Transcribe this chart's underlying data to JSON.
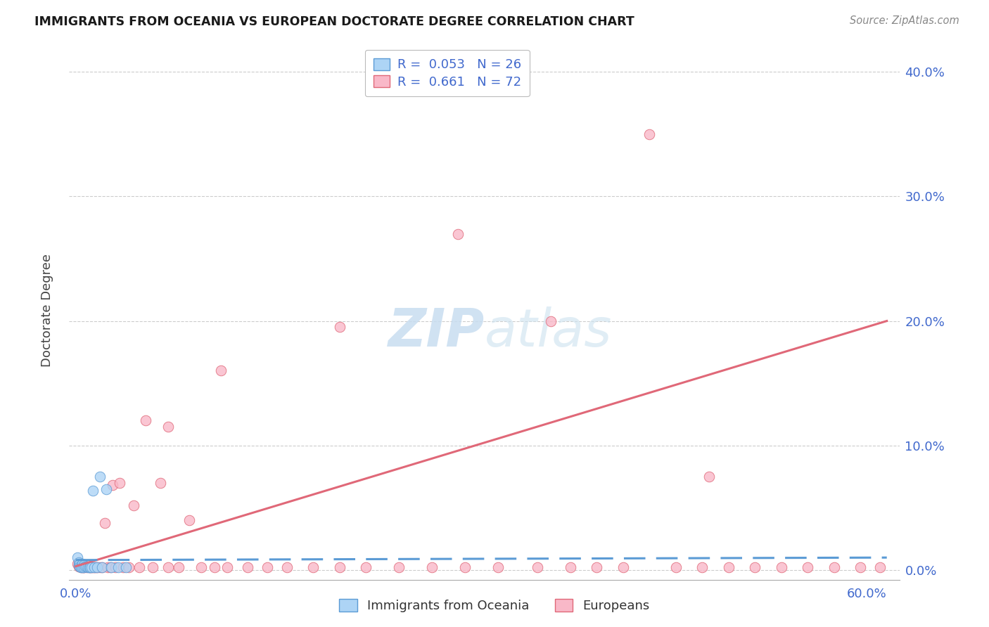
{
  "title": "IMMIGRANTS FROM OCEANIA VS EUROPEAN DOCTORATE DEGREE CORRELATION CHART",
  "source": "Source: ZipAtlas.com",
  "ylabel": "Doctorate Degree",
  "oceania_r": "0.053",
  "oceania_n": "26",
  "european_r": "0.661",
  "european_n": "72",
  "oceania_scatter_color": "#add4f5",
  "oceania_edge_color": "#5b9bd5",
  "european_scatter_color": "#f9b8c8",
  "european_edge_color": "#e06878",
  "oceania_line_color": "#5b9bd5",
  "european_line_color": "#e06878",
  "watermark_color": "#dce8f5",
  "grid_color": "#cccccc",
  "axis_label_color": "#4169cd",
  "title_color": "#1a1a1a",
  "source_color": "#888888",
  "background": "#ffffff",
  "xlim": [
    -0.005,
    0.625
  ],
  "ylim": [
    -0.008,
    0.425
  ],
  "xticks": [
    0.0,
    0.6
  ],
  "xticklabels": [
    "0.0%",
    "60.0%"
  ],
  "yticks": [
    0.0,
    0.1,
    0.2,
    0.3,
    0.4
  ],
  "yticklabels": [
    "0.0%",
    "10.0%",
    "20.0%",
    "30.0%",
    "40.0%"
  ],
  "oceania_x": [
    0.001,
    0.002,
    0.002,
    0.003,
    0.003,
    0.004,
    0.004,
    0.005,
    0.005,
    0.006,
    0.006,
    0.007,
    0.008,
    0.009,
    0.01,
    0.011,
    0.012,
    0.013,
    0.014,
    0.016,
    0.018,
    0.02,
    0.023,
    0.027,
    0.032,
    0.038
  ],
  "oceania_y": [
    0.01,
    0.006,
    0.004,
    0.005,
    0.003,
    0.003,
    0.002,
    0.005,
    0.002,
    0.004,
    0.002,
    0.003,
    0.003,
    0.002,
    0.002,
    0.002,
    0.002,
    0.064,
    0.002,
    0.002,
    0.075,
    0.002,
    0.065,
    0.002,
    0.002,
    0.002
  ],
  "european_x": [
    0.001,
    0.002,
    0.002,
    0.003,
    0.003,
    0.004,
    0.004,
    0.005,
    0.005,
    0.006,
    0.006,
    0.007,
    0.008,
    0.009,
    0.01,
    0.011,
    0.012,
    0.013,
    0.014,
    0.015,
    0.016,
    0.018,
    0.02,
    0.022,
    0.024,
    0.026,
    0.028,
    0.03,
    0.033,
    0.036,
    0.04,
    0.044,
    0.048,
    0.053,
    0.058,
    0.064,
    0.07,
    0.078,
    0.086,
    0.095,
    0.105,
    0.115,
    0.13,
    0.145,
    0.16,
    0.18,
    0.2,
    0.22,
    0.245,
    0.27,
    0.295,
    0.32,
    0.35,
    0.375,
    0.395,
    0.415,
    0.435,
    0.455,
    0.475,
    0.495,
    0.515,
    0.535,
    0.555,
    0.575,
    0.595,
    0.61,
    0.2,
    0.29,
    0.36,
    0.48,
    0.11,
    0.07
  ],
  "european_y": [
    0.005,
    0.004,
    0.003,
    0.004,
    0.003,
    0.003,
    0.002,
    0.002,
    0.003,
    0.002,
    0.002,
    0.003,
    0.002,
    0.003,
    0.002,
    0.002,
    0.002,
    0.002,
    0.002,
    0.002,
    0.002,
    0.002,
    0.002,
    0.038,
    0.002,
    0.002,
    0.068,
    0.002,
    0.07,
    0.002,
    0.002,
    0.052,
    0.002,
    0.12,
    0.002,
    0.07,
    0.002,
    0.002,
    0.04,
    0.002,
    0.002,
    0.002,
    0.002,
    0.002,
    0.002,
    0.002,
    0.002,
    0.002,
    0.002,
    0.002,
    0.002,
    0.002,
    0.002,
    0.002,
    0.002,
    0.002,
    0.35,
    0.002,
    0.002,
    0.002,
    0.002,
    0.002,
    0.002,
    0.002,
    0.002,
    0.002,
    0.195,
    0.27,
    0.2,
    0.075,
    0.16,
    0.115
  ],
  "eu_line_x0": 0.0,
  "eu_line_x1": 0.615,
  "eu_line_y0": 0.003,
  "eu_line_y1": 0.2,
  "oc_line_x0": 0.0,
  "oc_line_x1": 0.615,
  "oc_line_y0": 0.008,
  "oc_line_y1": 0.01
}
